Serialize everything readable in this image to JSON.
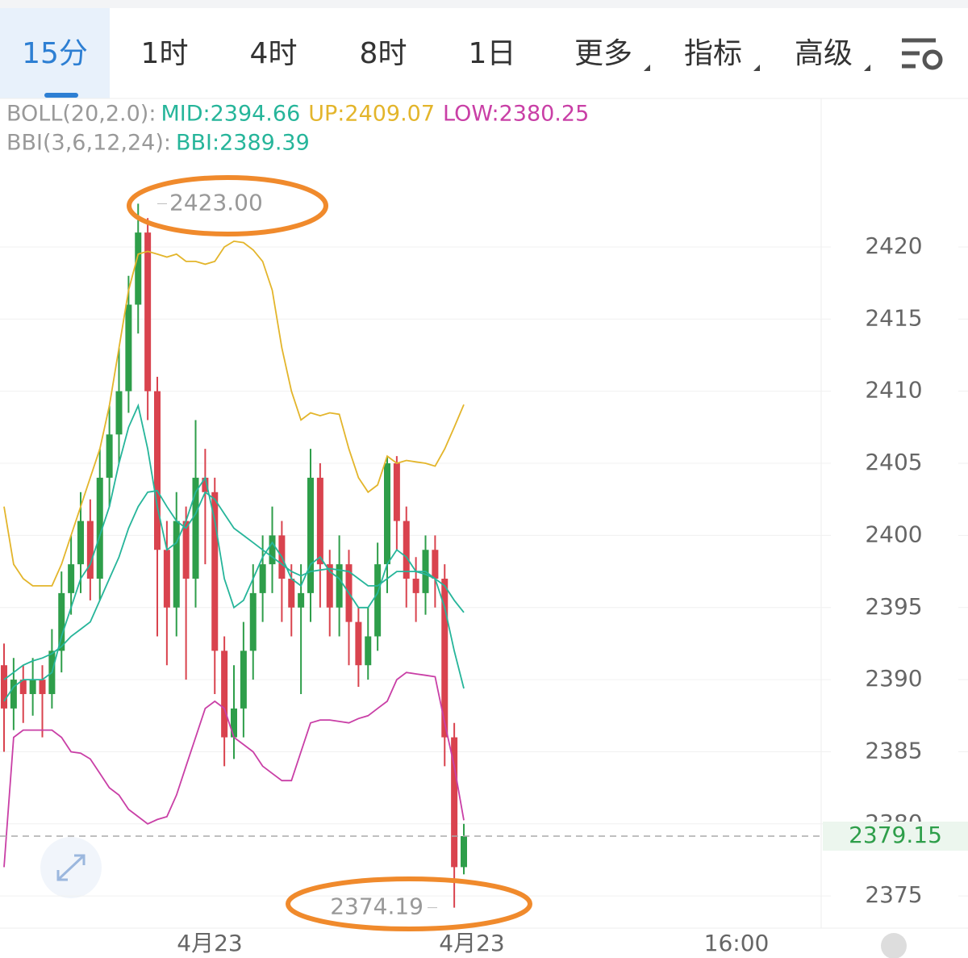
{
  "tabs": [
    "15分",
    "1时",
    "4时",
    "8时",
    "1日",
    "更多",
    "指标",
    "高级"
  ],
  "chart_data": {
    "type": "candlestick",
    "up_color": "#2e9e4a",
    "down_color": "#d9434e",
    "ylim": [
      2372.4,
      2427.2
    ],
    "yticks": [
      2375,
      2380,
      2385,
      2390,
      2395,
      2400,
      2405,
      2410,
      2415,
      2420
    ],
    "grid": true,
    "xlabels": [
      "4月23",
      "4月23",
      "16:00"
    ],
    "open": [
      2391,
      2388,
      2390,
      2389,
      2390,
      2389,
      2392,
      2396,
      2398,
      2401,
      2397,
      2404,
      2407,
      2410,
      2416,
      2421,
      2410,
      2399,
      2395,
      2401,
      2397,
      2404,
      2403,
      2392,
      2386,
      2388,
      2392,
      2396,
      2398,
      2400,
      2397,
      2395,
      2396,
      2404,
      2398,
      2395,
      2398,
      2394,
      2391,
      2393,
      2398,
      2405,
      2401,
      2397,
      2396,
      2399,
      2397,
      2386,
      2377
    ],
    "high": [
      2392.5,
      2391.5,
      2391,
      2391.5,
      2391,
      2393.5,
      2397.5,
      2400,
      2403,
      2402.5,
      2406,
      2409,
      2413,
      2418,
      2423,
      2422,
      2411,
      2401,
      2403,
      2402,
      2408,
      2406,
      2404,
      2393,
      2391,
      2394,
      2398,
      2400,
      2402,
      2401,
      2398,
      2398,
      2406,
      2405,
      2399,
      2400,
      2399,
      2395,
      2395,
      2399.5,
      2405.5,
      2405.5,
      2402,
      2398.5,
      2400,
      2400,
      2398,
      2387,
      2380
    ],
    "low": [
      2385,
      2386.5,
      2387,
      2387.5,
      2386,
      2388,
      2390.5,
      2394.5,
      2396,
      2395.5,
      2395.5,
      2402,
      2405,
      2408.5,
      2414,
      2408,
      2393,
      2391,
      2393,
      2390,
      2395,
      2398,
      2389,
      2384,
      2384.5,
      2386,
      2390,
      2394,
      2396,
      2394,
      2393,
      2389,
      2394,
      2395,
      2393,
      2393,
      2391,
      2389.5,
      2390,
      2392,
      2396,
      2399,
      2395,
      2394,
      2394.5,
      2395,
      2384,
      2374.19,
      2376.5
    ],
    "close": [
      2388,
      2390,
      2389,
      2390,
      2389,
      2392,
      2396,
      2398,
      2401,
      2397,
      2404,
      2407,
      2410,
      2416,
      2421,
      2410,
      2399,
      2395,
      2401,
      2397,
      2404,
      2403,
      2392,
      2386,
      2388,
      2392,
      2396,
      2398,
      2400,
      2397,
      2395,
      2396,
      2404,
      2398,
      2395,
      2398,
      2394,
      2391,
      2393,
      2398,
      2405,
      2401,
      2397,
      2396,
      2399,
      2397,
      2386,
      2377,
      2379.15
    ],
    "indicators": [
      {
        "label": "BOLL(20,2.0):",
        "series": [
          {
            "name": "MID:",
            "color": "#26b59a",
            "values": [
              2390,
              2390.5,
              2391,
              2391.3,
              2391.5,
              2391.8,
              2392.3,
              2393,
              2393.5,
              2394,
              2395.5,
              2397,
              2398.5,
              2400.5,
              2402,
              2403,
              2403.1,
              2402,
              2401,
              2400.5,
              2401.5,
              2403,
              2402.5,
              2401.5,
              2400.5,
              2400,
              2399.5,
              2399,
              2398.5,
              2398,
              2397.5,
              2397.2,
              2397.5,
              2397.6,
              2397.7,
              2397.6,
              2397.5,
              2397,
              2396.5,
              2396.5,
              2397,
              2397.5,
              2397.5,
              2397.5,
              2397.3,
              2397,
              2396.5,
              2395.5,
              2394.66
            ]
          },
          {
            "name": "UP:",
            "color": "#e3b52b",
            "values": [
              2402,
              2398,
              2397,
              2396.5,
              2396.5,
              2396.5,
              2398,
              2400,
              2402,
              2404,
              2406,
              2409,
              2413,
              2417,
              2419.5,
              2419.7,
              2419.5,
              2419.3,
              2419.5,
              2419,
              2419,
              2418.8,
              2419,
              2420,
              2420.4,
              2420.3,
              2419.8,
              2419,
              2417,
              2413,
              2410,
              2408,
              2408.5,
              2408.3,
              2408.5,
              2408.4,
              2406,
              2404,
              2403,
              2403.5,
              2405.5,
              2405,
              2405.2,
              2405.1,
              2405,
              2404.8,
              2406,
              2407.5,
              2409.07
            ]
          },
          {
            "name": "LOW:",
            "color": "#c93fa6",
            "values": [
              2377,
              2386,
              2386.5,
              2386.5,
              2386.5,
              2386.5,
              2386,
              2385,
              2384.9,
              2384.5,
              2383.5,
              2382.5,
              2382,
              2381,
              2380.5,
              2380,
              2380.3,
              2380.5,
              2382,
              2384,
              2386,
              2388,
              2388.5,
              2388,
              2386,
              2385.5,
              2385,
              2384,
              2383.5,
              2383,
              2383,
              2385,
              2387,
              2387.2,
              2387.2,
              2387.1,
              2387,
              2387.3,
              2387.5,
              2388,
              2388.5,
              2390,
              2390.5,
              2390.4,
              2390.3,
              2390.2,
              2387,
              2384,
              2380.25
            ]
          }
        ]
      },
      {
        "label": "BBI(3,6,12,24):",
        "series": [
          {
            "name": "BBI:",
            "color": "#26b59a",
            "values": [
              2388.5,
              2389.5,
              2390,
              2390,
              2390,
              2390.5,
              2393,
              2395,
              2397,
              2398,
              2400,
              2402,
              2405,
              2407.5,
              2409,
              2406,
              2402,
              2399,
              2399.5,
              2401,
              2403,
              2404,
              2401,
              2397,
              2395,
              2395.5,
              2397,
              2398.5,
              2399.5,
              2398.5,
              2397,
              2396.5,
              2398,
              2398.5,
              2397.5,
              2397,
              2396,
              2395,
              2395,
              2396,
              2398,
              2399,
              2398.5,
              2397.5,
              2397.5,
              2397,
              2395,
              2392,
              2389.39
            ]
          }
        ]
      }
    ],
    "annotations": [
      {
        "value": 2423,
        "label": "2423.00"
      },
      {
        "value": 2374.19,
        "label": "2374.19"
      }
    ],
    "last_price": 2379.15
  }
}
